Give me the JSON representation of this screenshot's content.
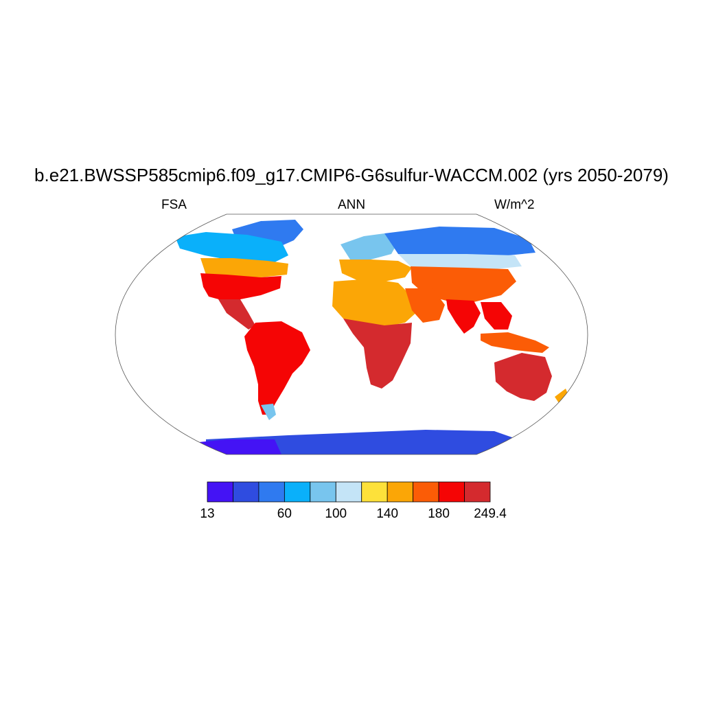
{
  "title": "b.e21.BWSSP585cmip6.f09_g17.CMIP6-G6sulfur-WACCM.002 (yrs 2050-2079)",
  "left_string": "FSA",
  "center_string": "ANN",
  "right_string": "W/m^2",
  "colorbar": {
    "colors": [
      "#4413f5",
      "#2f4ce0",
      "#2f7af0",
      "#0ab0fa",
      "#78c5ee",
      "#c4e4f7",
      "#fde13a",
      "#fba606",
      "#fb5c06",
      "#f50505",
      "#d42a2e"
    ],
    "tick_labels": [
      {
        "text": "13",
        "index": 0
      },
      {
        "text": "60",
        "index": 3
      },
      {
        "text": "100",
        "index": 5
      },
      {
        "text": "140",
        "index": 7
      },
      {
        "text": "180",
        "index": 9
      },
      {
        "text": "249.4",
        "index": 11
      }
    ]
  },
  "map": {
    "projection": "robinson",
    "field": "FSA",
    "season": "ANN",
    "units": "W/m^2"
  }
}
